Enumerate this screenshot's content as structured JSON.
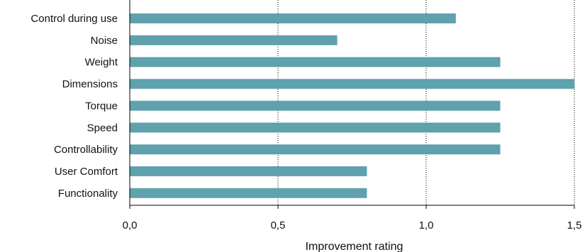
{
  "chart_data": {
    "type": "bar",
    "orientation": "horizontal",
    "categories": [
      "Control during use",
      "Noise",
      "Weight",
      "Dimensions",
      "Torque",
      "Speed",
      "Controllability",
      "User Comfort",
      "Functionality"
    ],
    "values": [
      1.1,
      0.7,
      1.25,
      1.5,
      1.25,
      1.25,
      1.25,
      0.8,
      0.8
    ],
    "xlabel": "Improvement rating",
    "ylabel": "",
    "xlim": [
      0,
      1.5
    ],
    "xticks": [
      "0,0",
      "0,5",
      "1,0",
      "1,5"
    ],
    "grid": "vertical dotted",
    "bar_color": "#5fa1ad"
  }
}
